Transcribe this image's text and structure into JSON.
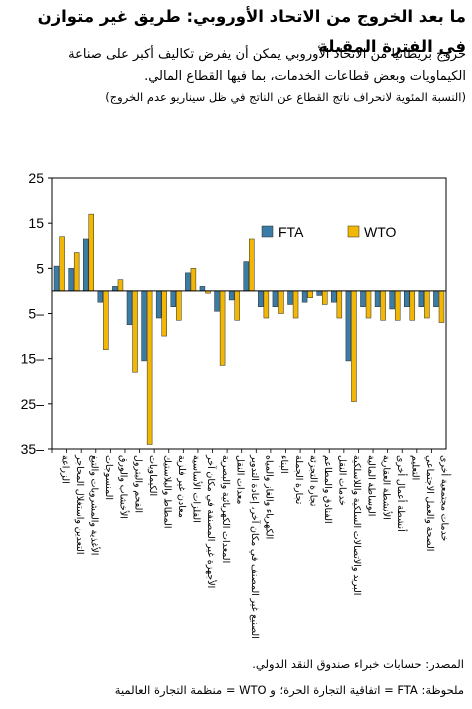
{
  "header": {
    "title": "ما بعد الخروج من الاتحاد الأوروبي: طريق غير متوازن في الفترة المقبلة",
    "subtitle": "خروج بريطانيا من الاتحاد الأوروبي يمكن أن يفرض تكاليف أكبر على صناعة الكيماويات وبعض قطاعات الخدمات، بما فيها القطاع المالي.",
    "unit": "(النسبة المئوية لانحراف ناتج القطاع عن الناتج في ظل سيناريو عدم الخروج)"
  },
  "chart_data": {
    "type": "bar",
    "ylim": [
      -35,
      25
    ],
    "yticks": [
      25,
      15,
      5,
      -5,
      -15,
      -25,
      -35
    ],
    "tick_labels": [
      "25",
      "15",
      "5",
      "5–",
      "15–",
      "25–",
      "35–"
    ],
    "legend_position": "top-right",
    "colors": {
      "FTA": "#3a7ca5",
      "WTO": "#f2b705"
    },
    "categories": [
      "الزراعة",
      "التعدين واستغلال المحاجر",
      "الأغذية والمشروبات والتبغ",
      "المنسوجات",
      "الأخشاب والورق",
      "الفحم والبترول",
      "الكيماويات",
      "المطاط والبلاستيك",
      "معادن غير فلزية",
      "الفلزات الأساسية",
      "الأجهزة غير المصنفة في مكان آخر",
      "المعدات الكهربائية والبصرية",
      "معدات النقل",
      "الصنيع غير المصنف في مكان آخر، إعادة التدوير",
      "الكهرباء والغاز والمياه",
      "البناء",
      "تجارة الجملة",
      "تجارة التجزئة",
      "الفنادق والمطاعم",
      "خدمات النقل",
      "البريد والاتصالات السلكية واللاسلكية",
      "الوساطة المالية",
      "الأنشطة العقارية",
      "أنشطة أعمال أخرى",
      "التعليم",
      "الصحة والعمل الاجتماعي",
      "خدمات مجتمعية أخرى"
    ],
    "series": [
      {
        "name": "FTA",
        "values": [
          5.5,
          5,
          11.5,
          -2.5,
          1,
          -7.5,
          -15.5,
          -6,
          -3.5,
          4,
          1,
          -4.5,
          -2,
          6.5,
          -3.5,
          -3.5,
          -3,
          -2.5,
          -1,
          -2.5,
          -15.5,
          -3.5,
          -3.5,
          -4,
          -3.5,
          -3.5,
          -3.5
        ]
      },
      {
        "name": "WTO",
        "values": [
          12,
          8.5,
          17,
          -13,
          2.5,
          -18,
          -34,
          -10,
          -6.5,
          5,
          -0.5,
          -16.5,
          -6.5,
          11.5,
          -6,
          -5,
          -6,
          -1.5,
          -3,
          -6,
          -24.5,
          -6,
          -6.5,
          -6.5,
          -6.5,
          -6,
          -7
        ]
      }
    ]
  },
  "footer": {
    "source": "المصدر: حسابات خبراء صندوق النقد الدولي.",
    "note": "ملحوظة: FTA = اتفاقية التجارة الحرة؛ و WTO = منظمة التجارة العالمية"
  }
}
